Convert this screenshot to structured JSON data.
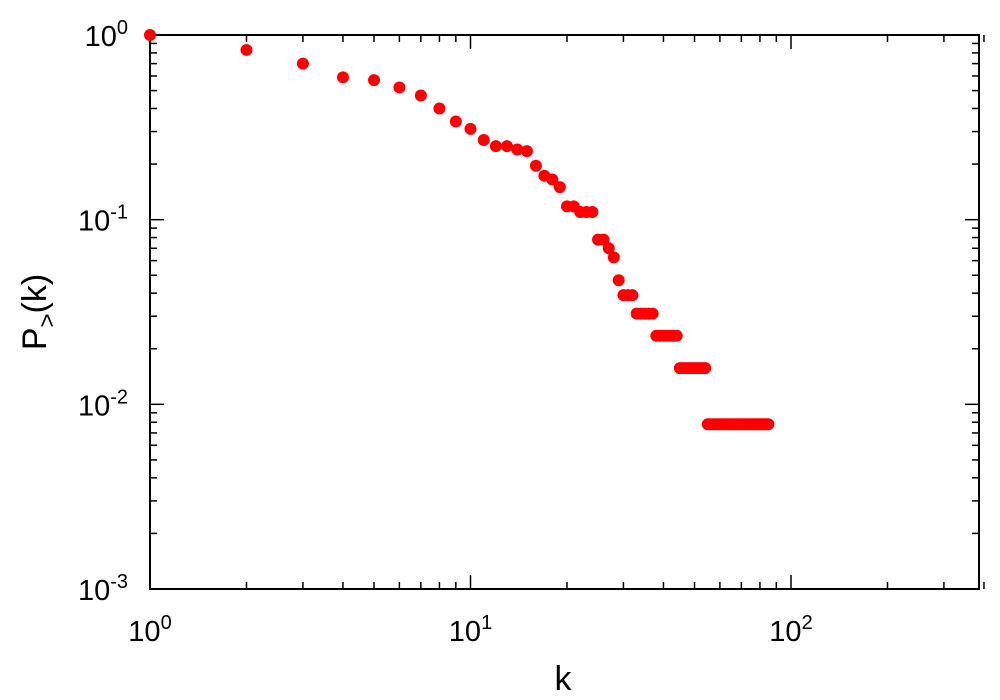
{
  "chart_data": {
    "type": "scatter",
    "title": "",
    "xlabel": "k",
    "ylabel": {
      "main": "P",
      "subscript": ">",
      "suffix": "(k)"
    },
    "x_scale": "log",
    "y_scale": "log",
    "xlim": [
      1,
      400
    ],
    "ylim": [
      0.001,
      1
    ],
    "grid": false,
    "legend": "none",
    "marker_color": "#ff0000",
    "x_ticks": [
      {
        "value": 1,
        "base": "10",
        "exp": "0"
      },
      {
        "value": 10,
        "base": "10",
        "exp": "1"
      },
      {
        "value": 100,
        "base": "10",
        "exp": "2"
      }
    ],
    "y_ticks": [
      {
        "value": 1,
        "base": "10",
        "exp": "0"
      },
      {
        "value": 0.1,
        "base": "10",
        "exp": "-1"
      },
      {
        "value": 0.01,
        "base": "10",
        "exp": "-2"
      },
      {
        "value": 0.001,
        "base": "10",
        "exp": "-3"
      }
    ],
    "series": [
      {
        "x": [
          1,
          2,
          3,
          4,
          5,
          6,
          7,
          8,
          9,
          10,
          11,
          12,
          13,
          14,
          15,
          16,
          17,
          18,
          19,
          20,
          21,
          22,
          23,
          24,
          25,
          26,
          27,
          28,
          29,
          30,
          31,
          32,
          33,
          34,
          35,
          36,
          37,
          38,
          39,
          40,
          41,
          42,
          43,
          44,
          45,
          46,
          47,
          48,
          49,
          50,
          51,
          52,
          53,
          54,
          55,
          56,
          57,
          58,
          59,
          60,
          61,
          62,
          63,
          64,
          65,
          66,
          67,
          68,
          69,
          70,
          71,
          72,
          73,
          74,
          75,
          76,
          77,
          78,
          79,
          80,
          81,
          82,
          83,
          84,
          85
        ],
        "y": [
          1.0,
          0.83,
          0.7,
          0.59,
          0.57,
          0.52,
          0.47,
          0.4,
          0.34,
          0.31,
          0.27,
          0.25,
          0.25,
          0.24,
          0.235,
          0.196,
          0.173,
          0.165,
          0.15,
          0.118,
          0.118,
          0.11,
          0.11,
          0.11,
          0.078,
          0.078,
          0.07,
          0.0625,
          0.047,
          0.039,
          0.039,
          0.039,
          0.031,
          0.031,
          0.031,
          0.031,
          0.031,
          0.0235,
          0.0235,
          0.0235,
          0.0235,
          0.0235,
          0.0235,
          0.0235,
          0.0157,
          0.0157,
          0.0157,
          0.0157,
          0.0157,
          0.0157,
          0.0157,
          0.0157,
          0.0157,
          0.0157,
          0.0078,
          0.0078,
          0.0078,
          0.0078,
          0.0078,
          0.0078,
          0.0078,
          0.0078,
          0.0078,
          0.0078,
          0.0078,
          0.0078,
          0.0078,
          0.0078,
          0.0078,
          0.0078,
          0.0078,
          0.0078,
          0.0078,
          0.0078,
          0.0078,
          0.0078,
          0.0078,
          0.0078,
          0.0078,
          0.0078,
          0.0078,
          0.0078,
          0.0078,
          0.0078,
          0.0078
        ]
      }
    ]
  }
}
